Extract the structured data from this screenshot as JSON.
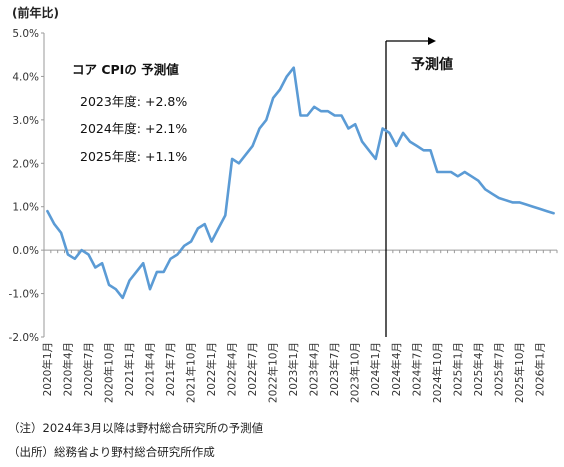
{
  "chart_data": {
    "type": "line",
    "unit_label": "(前年比)",
    "series": [
      {
        "name": "コア CPI",
        "color": "#5b9bd5",
        "values": [
          0.9,
          0.6,
          0.4,
          -0.1,
          -0.2,
          0.0,
          -0.1,
          -0.4,
          -0.3,
          -0.8,
          -0.9,
          -1.1,
          -0.7,
          -0.5,
          -0.3,
          -0.9,
          -0.5,
          -0.5,
          -0.2,
          -0.1,
          0.1,
          0.2,
          0.5,
          0.6,
          0.2,
          0.5,
          0.8,
          2.1,
          2.0,
          2.2,
          2.4,
          2.8,
          3.0,
          3.5,
          3.7,
          4.0,
          4.2,
          3.1,
          3.1,
          3.3,
          3.2,
          3.2,
          3.1,
          3.1,
          2.8,
          2.9,
          2.5,
          2.3,
          2.1,
          2.8,
          2.7,
          2.4,
          2.7,
          2.5,
          2.4,
          2.3,
          2.3,
          1.8,
          1.8,
          1.8,
          1.7,
          1.8,
          1.7,
          1.6,
          1.4,
          1.3,
          1.2,
          1.15,
          1.1,
          1.1,
          1.05,
          1.0,
          0.95,
          0.9,
          0.85
        ]
      }
    ],
    "x_start": "2020-01",
    "x_end": "2026-03",
    "tick_labels": [
      "2020年1月",
      "2020年4月",
      "2020年7月",
      "2020年10月",
      "2021年1月",
      "2021年4月",
      "2021年7月",
      "2021年10月",
      "2022年1月",
      "2022年4月",
      "2022年7月",
      "2022年10月",
      "2023年1月",
      "2023年4月",
      "2023年7月",
      "2023年10月",
      "2024年1月",
      "2024年4月",
      "2024年7月",
      "2024年10月",
      "2025年1月",
      "2025年4月",
      "2025年7月",
      "2025年10月",
      "2026年1月"
    ],
    "y_ticks": [
      "5.0%",
      "4.0%",
      "3.0%",
      "2.0%",
      "1.0%",
      "0.0%",
      "-1.0%",
      "-2.0%"
    ],
    "ylim": [
      -2.0,
      5.0
    ],
    "forecast_start": "2024-03",
    "forecast_label": "予測値",
    "grid": false,
    "legend": {
      "title": "コア CPIの 予測値",
      "items": [
        "2023年度: +2.8%",
        "2024年度: +2.1%",
        "2025年度: +1.1%"
      ]
    }
  },
  "notes": {
    "note1": "（注）2024年3月以降は野村総合研究所の予測値",
    "source": "（出所）総務省より野村総合研究所作成"
  }
}
